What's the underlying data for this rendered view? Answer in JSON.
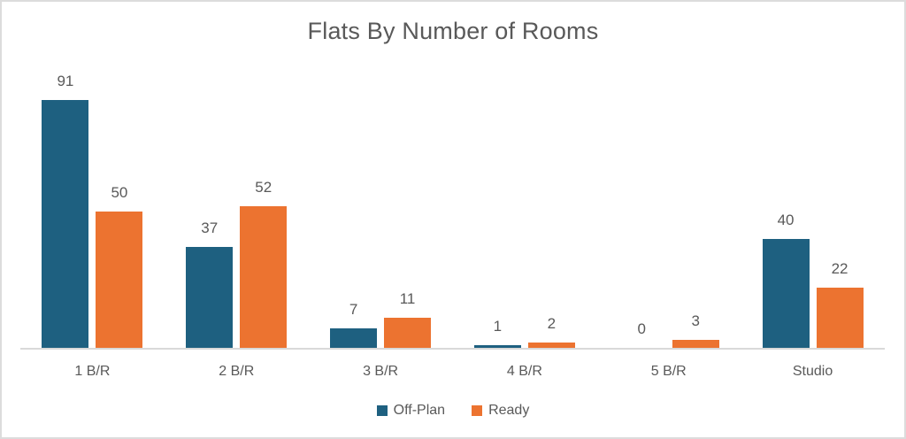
{
  "chart_data": {
    "type": "bar",
    "title": "Flats By Number of Rooms",
    "categories": [
      "1 B/R",
      "2 B/R",
      "3 B/R",
      "4 B/R",
      "5 B/R",
      "Studio"
    ],
    "series": [
      {
        "name": "Off-Plan",
        "color": "#1e6080",
        "values": [
          91,
          37,
          7,
          1,
          0,
          40
        ]
      },
      {
        "name": "Ready",
        "color": "#ec7330",
        "values": [
          50,
          52,
          11,
          2,
          3,
          22
        ]
      }
    ],
    "ylim": [
      0,
      100
    ],
    "xlabel": "",
    "ylabel": "",
    "grid": false,
    "data_labels": true,
    "legend_position": "bottom",
    "colors": {
      "title_text": "#595959",
      "label_text": "#595959",
      "axis_line": "#d9d9d9",
      "frame_border": "#dcdcdc",
      "background": "#ffffff"
    }
  }
}
